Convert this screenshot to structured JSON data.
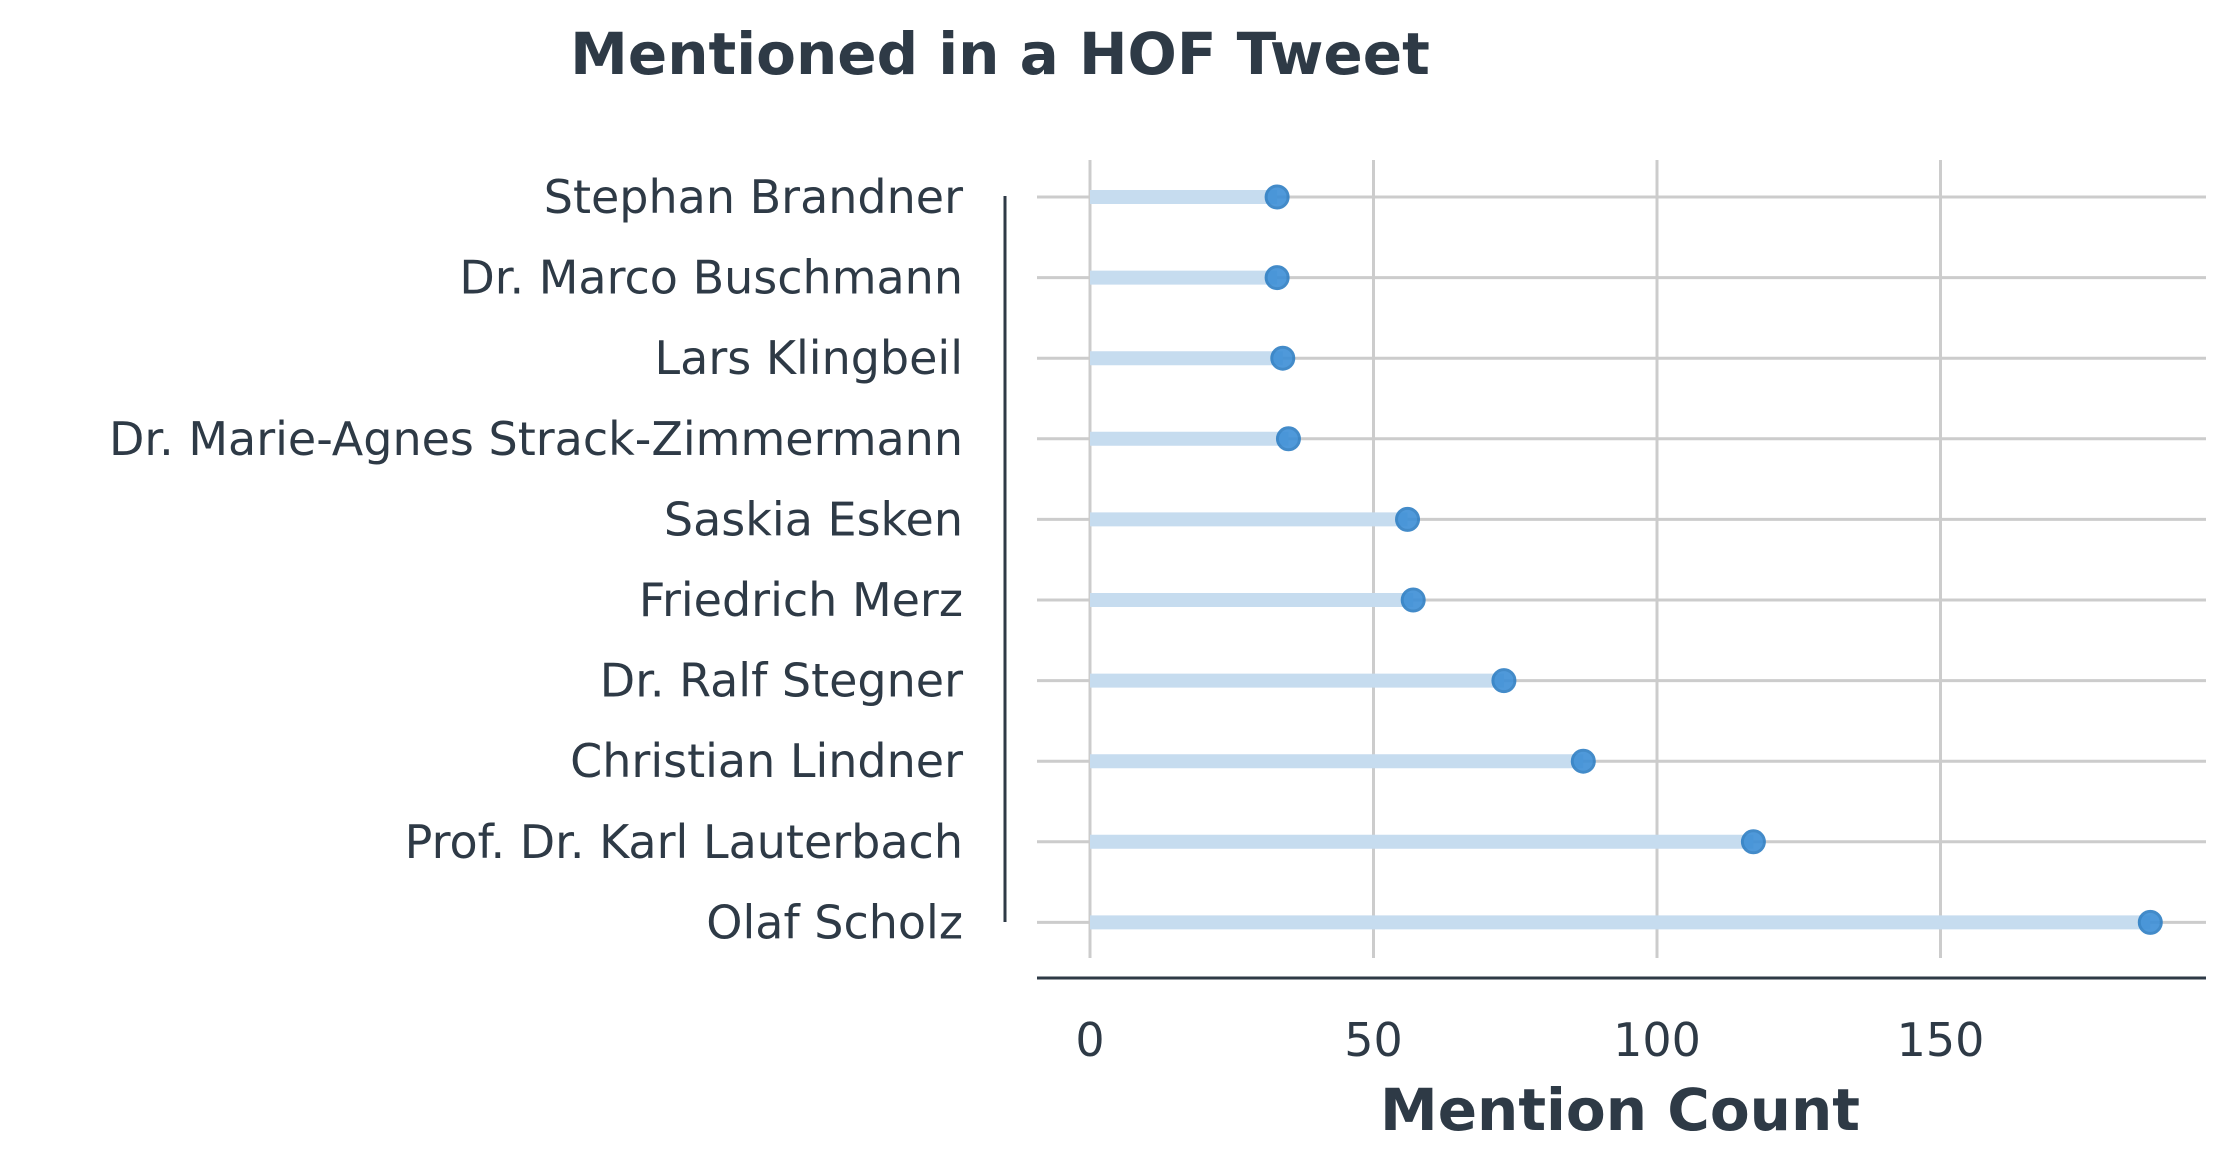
{
  "chart_data": {
    "type": "lollipop",
    "title": "Mentioned in a HOF Tweet",
    "xlabel": "Mention Count",
    "ylabel": "",
    "xlim": [
      -10,
      196
    ],
    "xticks": [
      0,
      50,
      100,
      150
    ],
    "grid": true,
    "legend": "none",
    "color": "#3d8fd6",
    "stem_color": "#c6dcef",
    "categories": [
      "Stephan Brandner",
      "Dr. Marco Buschmann",
      "Lars Klingbeil",
      "Dr. Marie-Agnes Strack-Zimmermann",
      "Saskia Esken",
      "Friedrich Merz",
      "Dr. Ralf Stegner",
      "Christian Lindner",
      "Prof. Dr. Karl Lauterbach",
      "Olaf Scholz"
    ],
    "values": [
      33,
      33,
      34,
      35,
      56,
      57,
      73,
      87,
      117,
      187
    ]
  }
}
